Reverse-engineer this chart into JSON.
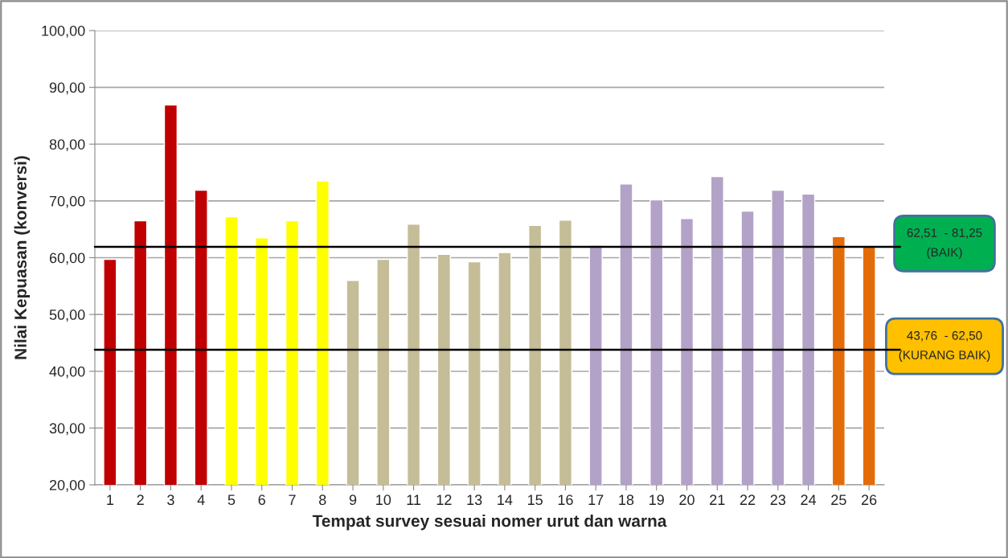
{
  "chart_data": {
    "type": "bar",
    "xlabel": "Tempat survey sesuai nomer urut dan warna",
    "ylabel": "Nilai Kepuasan (konversi)",
    "categories": [
      "1",
      "2",
      "3",
      "4",
      "5",
      "6",
      "7",
      "8",
      "9",
      "10",
      "11",
      "12",
      "13",
      "14",
      "15",
      "16",
      "17",
      "18",
      "19",
      "20",
      "21",
      "22",
      "23",
      "24",
      "25",
      "26"
    ],
    "values": [
      59.7,
      66.5,
      86.9,
      71.9,
      67.2,
      63.5,
      66.5,
      73.5,
      56.0,
      59.7,
      65.9,
      60.6,
      59.3,
      60.9,
      65.7,
      66.6,
      62.2,
      73.0,
      70.2,
      66.9,
      74.3,
      68.2,
      71.9,
      71.2,
      63.7,
      61.9
    ],
    "colors": [
      "#c00000",
      "#c00000",
      "#c00000",
      "#c00000",
      "#ffff00",
      "#ffff00",
      "#ffff00",
      "#ffff00",
      "#c4bd97",
      "#c4bd97",
      "#c4bd97",
      "#c4bd97",
      "#c4bd97",
      "#c4bd97",
      "#c4bd97",
      "#c4bd97",
      "#b2a2c7",
      "#b2a2c7",
      "#b2a2c7",
      "#b2a2c7",
      "#b2a2c7",
      "#b2a2c7",
      "#b2a2c7",
      "#b2a2c7",
      "#e36c09",
      "#e36c09"
    ],
    "ylim": [
      20,
      100
    ],
    "yticks": [
      {
        "value": 20,
        "label": "20,00"
      },
      {
        "value": 30,
        "label": "30,00"
      },
      {
        "value": 40,
        "label": "40,00"
      },
      {
        "value": 50,
        "label": "50,00"
      },
      {
        "value": 60,
        "label": "60,00"
      },
      {
        "value": 70,
        "label": "70,00"
      },
      {
        "value": 80,
        "label": "80,00"
      },
      {
        "value": 90,
        "label": "90,00"
      },
      {
        "value": 100,
        "label": "100,00"
      }
    ],
    "grid": "y",
    "legend": false,
    "ref_lines": [
      {
        "axis": "y",
        "value": 61.9,
        "label": "62,51  - 81,25\n(BAIK)",
        "color": "#000000"
      },
      {
        "axis": "y",
        "value": 43.8,
        "label": "43,76  - 62,50\n(KURANG BAIK)",
        "color": "#000000"
      }
    ]
  }
}
